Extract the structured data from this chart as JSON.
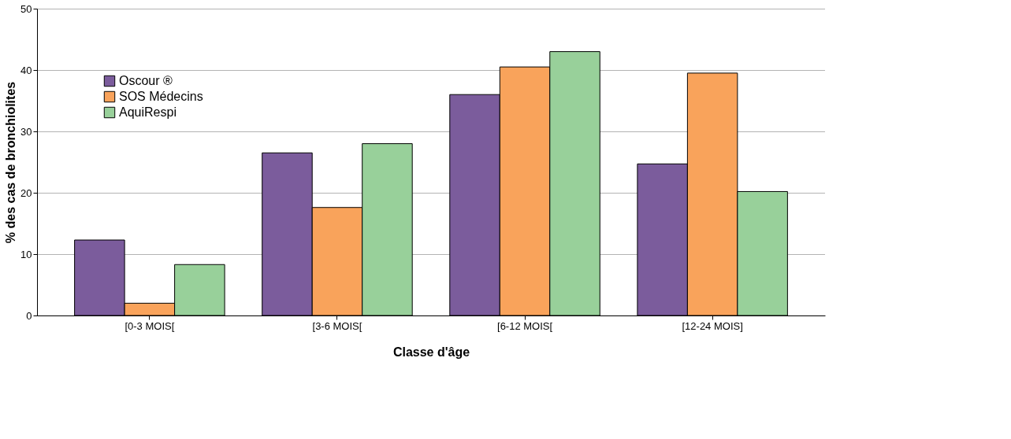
{
  "chart_data": {
    "type": "bar",
    "xlabel": "Classe d'âge",
    "ylabel": "% des cas de bronchiolites",
    "categories": [
      "[0-3 MOIS[",
      "[3-6 MOIS[",
      "[6-12 MOIS[",
      "[12-24 MOIS]"
    ],
    "series": [
      {
        "name": "Oscour ®",
        "color": "#7b5c9c",
        "values": [
          12.3,
          26.5,
          36.0,
          24.7
        ]
      },
      {
        "name": "SOS Médecins",
        "color": "#f9a35b",
        "values": [
          2.0,
          17.6,
          40.5,
          39.5
        ]
      },
      {
        "name": "AquiRespi",
        "color": "#98d09a",
        "values": [
          8.3,
          28.0,
          43.0,
          20.2
        ]
      }
    ],
    "ylim": [
      0,
      50
    ],
    "yticks": [
      0,
      10,
      20,
      30,
      40,
      50
    ],
    "grid": "y",
    "legend": "top left"
  }
}
